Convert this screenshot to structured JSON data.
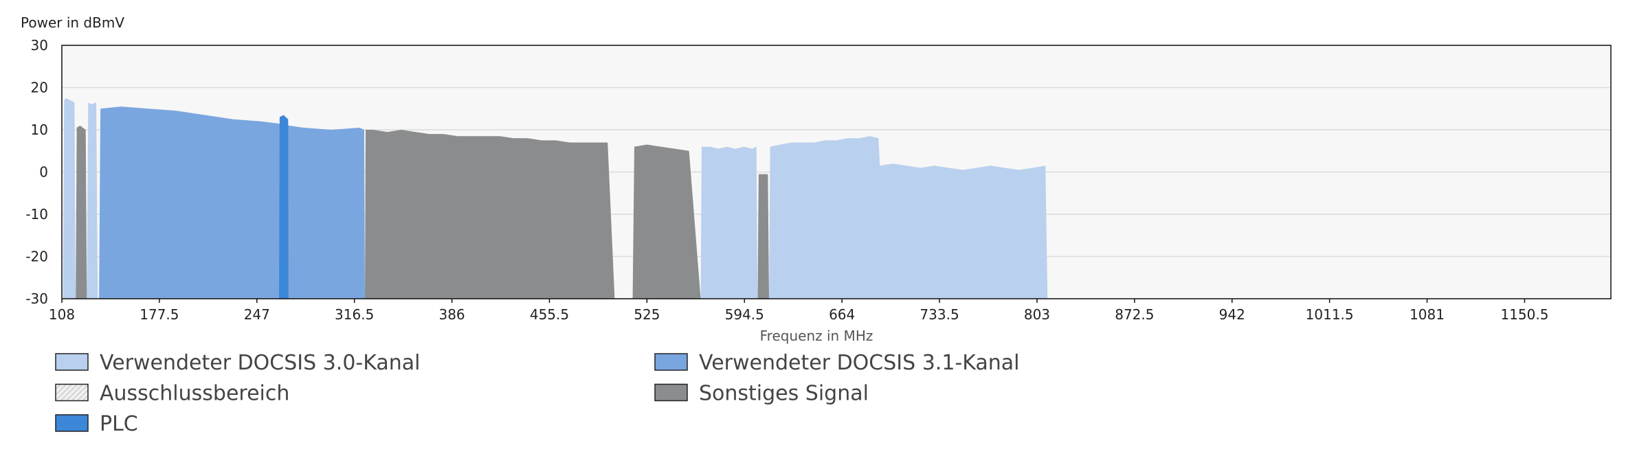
{
  "chart_data": {
    "type": "area",
    "y_label": "Power in dBmV",
    "x_label": "Frequenz in MHz",
    "xlim": [
      108,
      1212
    ],
    "xticks": [
      108,
      177.5,
      247,
      316.5,
      386,
      455.5,
      525,
      594.5,
      664,
      733.5,
      803,
      872.5,
      942,
      1011.5,
      1081,
      1150.5
    ],
    "ylim": [
      -30,
      30
    ],
    "yticks": [
      -30,
      -20,
      -10,
      0,
      10,
      20,
      30
    ],
    "grid": true,
    "series": [
      {
        "name": "Verwendeter DOCSIS 3.0-Kanal",
        "color": "#b9d0ee",
        "x": [
          108.8,
          109.6,
          111,
          114,
          117,
          117.8,
          122,
          125.8,
          126.8,
          129,
          132.5,
          133.6,
          400,
          563.3,
          564,
          570,
          576,
          582,
          588,
          594,
          600,
          603,
          603.8,
          608,
          612,
          612.8,
          620,
          628,
          636,
          644,
          652,
          660,
          668,
          676,
          684,
          690,
          691,
          700,
          710,
          720,
          730,
          740,
          750,
          760,
          770,
          780,
          790,
          800,
          809,
          810.5
        ],
        "values": [
          -30,
          17,
          17.5,
          17,
          16.5,
          -30,
          null,
          -30,
          16.5,
          16,
          16.5,
          -30,
          null,
          -30,
          6,
          6,
          5.5,
          6,
          5.5,
          6,
          5.5,
          6,
          -30,
          null,
          -30,
          6,
          6.5,
          7,
          7,
          7,
          7.5,
          7.5,
          8,
          8,
          8.5,
          8,
          1.5,
          2,
          1.5,
          1,
          1.5,
          1,
          0.5,
          1,
          1.5,
          1,
          0.5,
          1,
          1.5,
          -30
        ]
      },
      {
        "name": "Verwendeter DOCSIS 3.1-Kanal",
        "color": "#7aa6e0",
        "x": [
          134.5,
          135.5,
          150,
          170,
          190,
          210,
          230,
          250,
          262,
          270,
          280,
          300,
          320,
          323.5,
          324
        ],
        "values": [
          -30,
          15,
          15.5,
          15,
          14.5,
          13.5,
          12.5,
          12,
          11.5,
          11,
          10.5,
          10,
          10.5,
          10,
          -30
        ]
      },
      {
        "name": "Ausschlussbereich",
        "color": "#e6e6e6",
        "x": [],
        "values": []
      },
      {
        "name": "Sonstiges Signal",
        "color": "#8a8c8e",
        "x": [
          117.9,
          118.6,
          121,
          125,
          125.8,
          200,
          324,
          324.5,
          330,
          340,
          350,
          360,
          370,
          380,
          390,
          400,
          410,
          420,
          430,
          440,
          450,
          460,
          470,
          480,
          490,
          497,
          502,
          508,
          514.8,
          516,
          525,
          535,
          545,
          555,
          563.3,
          583,
          603.9,
          604.6,
          611.2,
          612
        ],
        "values": [
          -30,
          10.5,
          11,
          10,
          -30,
          null,
          -30,
          10,
          10,
          9.5,
          10,
          9.5,
          9,
          9,
          8.5,
          8.5,
          8.5,
          8.5,
          8,
          8,
          7.5,
          7.5,
          7,
          7,
          7,
          7,
          -30,
          null,
          -30,
          6,
          6.5,
          6,
          5.5,
          5,
          -30,
          null,
          -30,
          -0.5,
          -0.5,
          -30
        ]
      },
      {
        "name": "PLC",
        "color": "#3c87d8",
        "x": [
          262.8,
          263.2,
          266,
          269.3,
          269.5
        ],
        "values": [
          -30,
          13,
          13.5,
          12.5,
          -30
        ]
      }
    ]
  }
}
